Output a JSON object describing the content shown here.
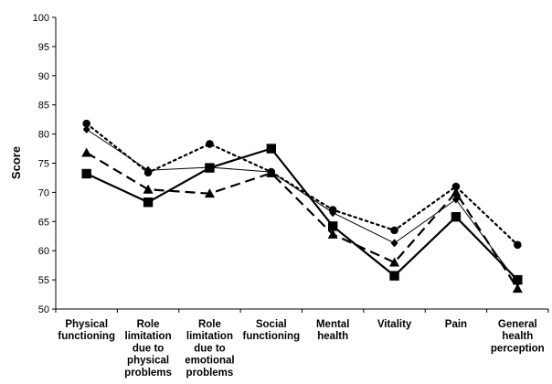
{
  "chart_data": {
    "type": "line",
    "ylabel": "Score",
    "ylim": [
      50,
      100
    ],
    "yticks": [
      50,
      55,
      60,
      65,
      70,
      75,
      80,
      85,
      90,
      95,
      100
    ],
    "grid": false,
    "categories": [
      [
        "Physical",
        "functioning"
      ],
      [
        "Role",
        "limitation",
        "due to",
        "physical",
        "problems"
      ],
      [
        "Role",
        "limitation",
        "due to",
        "emotional",
        "problems"
      ],
      [
        "Social",
        "functioning"
      ],
      [
        "Mental",
        "health"
      ],
      [
        "Vitality"
      ],
      [
        "Pain"
      ],
      [
        "General",
        "health",
        "perception"
      ]
    ],
    "series": [
      {
        "marker": "circle",
        "line": "dotted",
        "values": [
          81.8,
          73.4,
          78.3,
          73.5,
          67.0,
          63.5,
          71.0,
          61.0
        ]
      },
      {
        "marker": "diamond",
        "line": "thin-solid",
        "values": [
          80.8,
          73.8,
          74.3,
          73.5,
          66.5,
          61.3,
          68.8,
          54.5
        ]
      },
      {
        "marker": "triangle",
        "line": "dashed",
        "values": [
          76.8,
          70.5,
          69.8,
          73.3,
          62.8,
          58.0,
          70.0,
          53.5
        ]
      },
      {
        "marker": "square",
        "line": "bold-solid",
        "values": [
          73.2,
          68.3,
          74.2,
          77.5,
          64.2,
          55.7,
          65.8,
          55.0
        ]
      }
    ]
  }
}
